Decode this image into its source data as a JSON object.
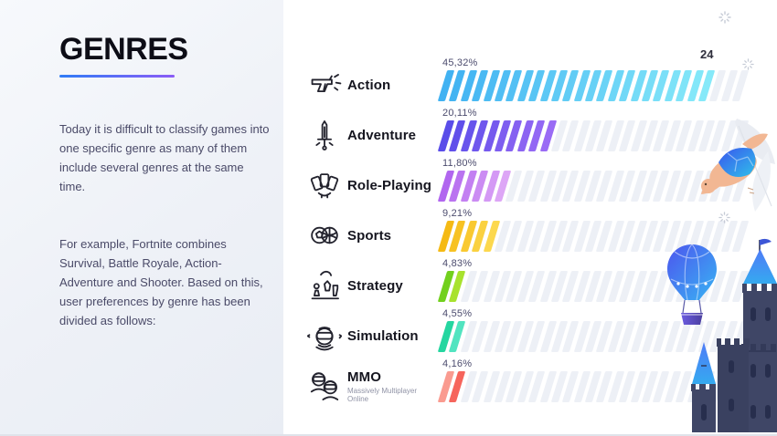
{
  "slide": {
    "left_panel": {
      "title": "GENRES",
      "paragraph_1": "Today it is difficult to classify games into one specific genre as many of them include several genres at the same time.",
      "paragraph_2": "For example, Fortnite combines Survival, Battle Royale, Action-Adventure and Shooter. Based on this, user preferences by genre has been divided as follows:"
    },
    "chart": {
      "count_label": "24",
      "track_stripes": 27,
      "genres": [
        {
          "label": "Action",
          "sublabel": "",
          "value_label": "45,32%",
          "value": 45.32,
          "stripes": 24,
          "icon": "pistol-icon",
          "color_start": "#41b2f2",
          "color_end": "#86e9f9"
        },
        {
          "label": "Adventure",
          "sublabel": "",
          "value_label": "20,11%",
          "value": 20.11,
          "stripes": 10,
          "icon": "sword-icon",
          "color_start": "#5a4de9",
          "color_end": "#9a6bf5"
        },
        {
          "label": "Role-Playing",
          "sublabel": "",
          "value_label": "11,80%",
          "value": 11.8,
          "stripes": 6,
          "icon": "cards-icon",
          "color_start": "#b166ef",
          "color_end": "#dda6f6"
        },
        {
          "label": "Sports",
          "sublabel": "",
          "value_label": "9,21%",
          "value": 9.21,
          "stripes": 5,
          "icon": "balls-icon",
          "color_start": "#f5ba14",
          "color_end": "#fcd84e"
        },
        {
          "label": "Strategy",
          "sublabel": "",
          "value_label": "4,83%",
          "value": 4.83,
          "stripes": 2,
          "icon": "chess-icon",
          "color_start": "#72d01d",
          "color_end": "#a8e22e"
        },
        {
          "label": "Simulation",
          "sublabel": "",
          "value_label": "4,55%",
          "value": 4.55,
          "stripes": 2,
          "icon": "vr-headset-icon",
          "color_start": "#25d6a0",
          "color_end": "#52e4c0"
        },
        {
          "label": "MMO",
          "sublabel": "Massively Multiplayer Online",
          "value_label": "4,16%",
          "value": 4.16,
          "stripes": 2,
          "icon": "mmo-players-icon",
          "color_start": "#fa9b90",
          "color_end": "#f6655c"
        }
      ]
    },
    "decorations": {
      "turtle": "turtle-illustration",
      "balloon": "hot-air-balloon-illustration",
      "castle": "castle-illustration",
      "sparkles": "sparkle-icon"
    },
    "colors": {
      "accent_underline_start": "#2f7cf6",
      "accent_underline_end": "#8b5cf6",
      "track_stripe": "#edf0f6",
      "panel_bg_start": "#f7f9fc",
      "panel_bg_end": "#e9edf4",
      "text_dark": "#15151f",
      "text_body": "#4a4a68"
    }
  },
  "chart_data": {
    "type": "bar",
    "orientation": "horizontal",
    "title": "GENRES — user preferences by genre",
    "categories": [
      "Action",
      "Adventure",
      "Role-Playing",
      "Sports",
      "Strategy",
      "Simulation",
      "MMO"
    ],
    "values": [
      45.32,
      20.11,
      11.8,
      9.21,
      4.83,
      4.55,
      4.16
    ],
    "value_labels": [
      "45,32%",
      "20,11%",
      "11,80%",
      "9,21%",
      "4,83%",
      "4,55%",
      "4,16%"
    ],
    "category_sublabels": [
      "",
      "",
      "",
      "",
      "",
      "",
      "Massively Multiplayer Online"
    ],
    "unit": "%",
    "annotations": [
      "24"
    ],
    "xlim": [
      0,
      50
    ],
    "legend": false,
    "grid": false
  }
}
